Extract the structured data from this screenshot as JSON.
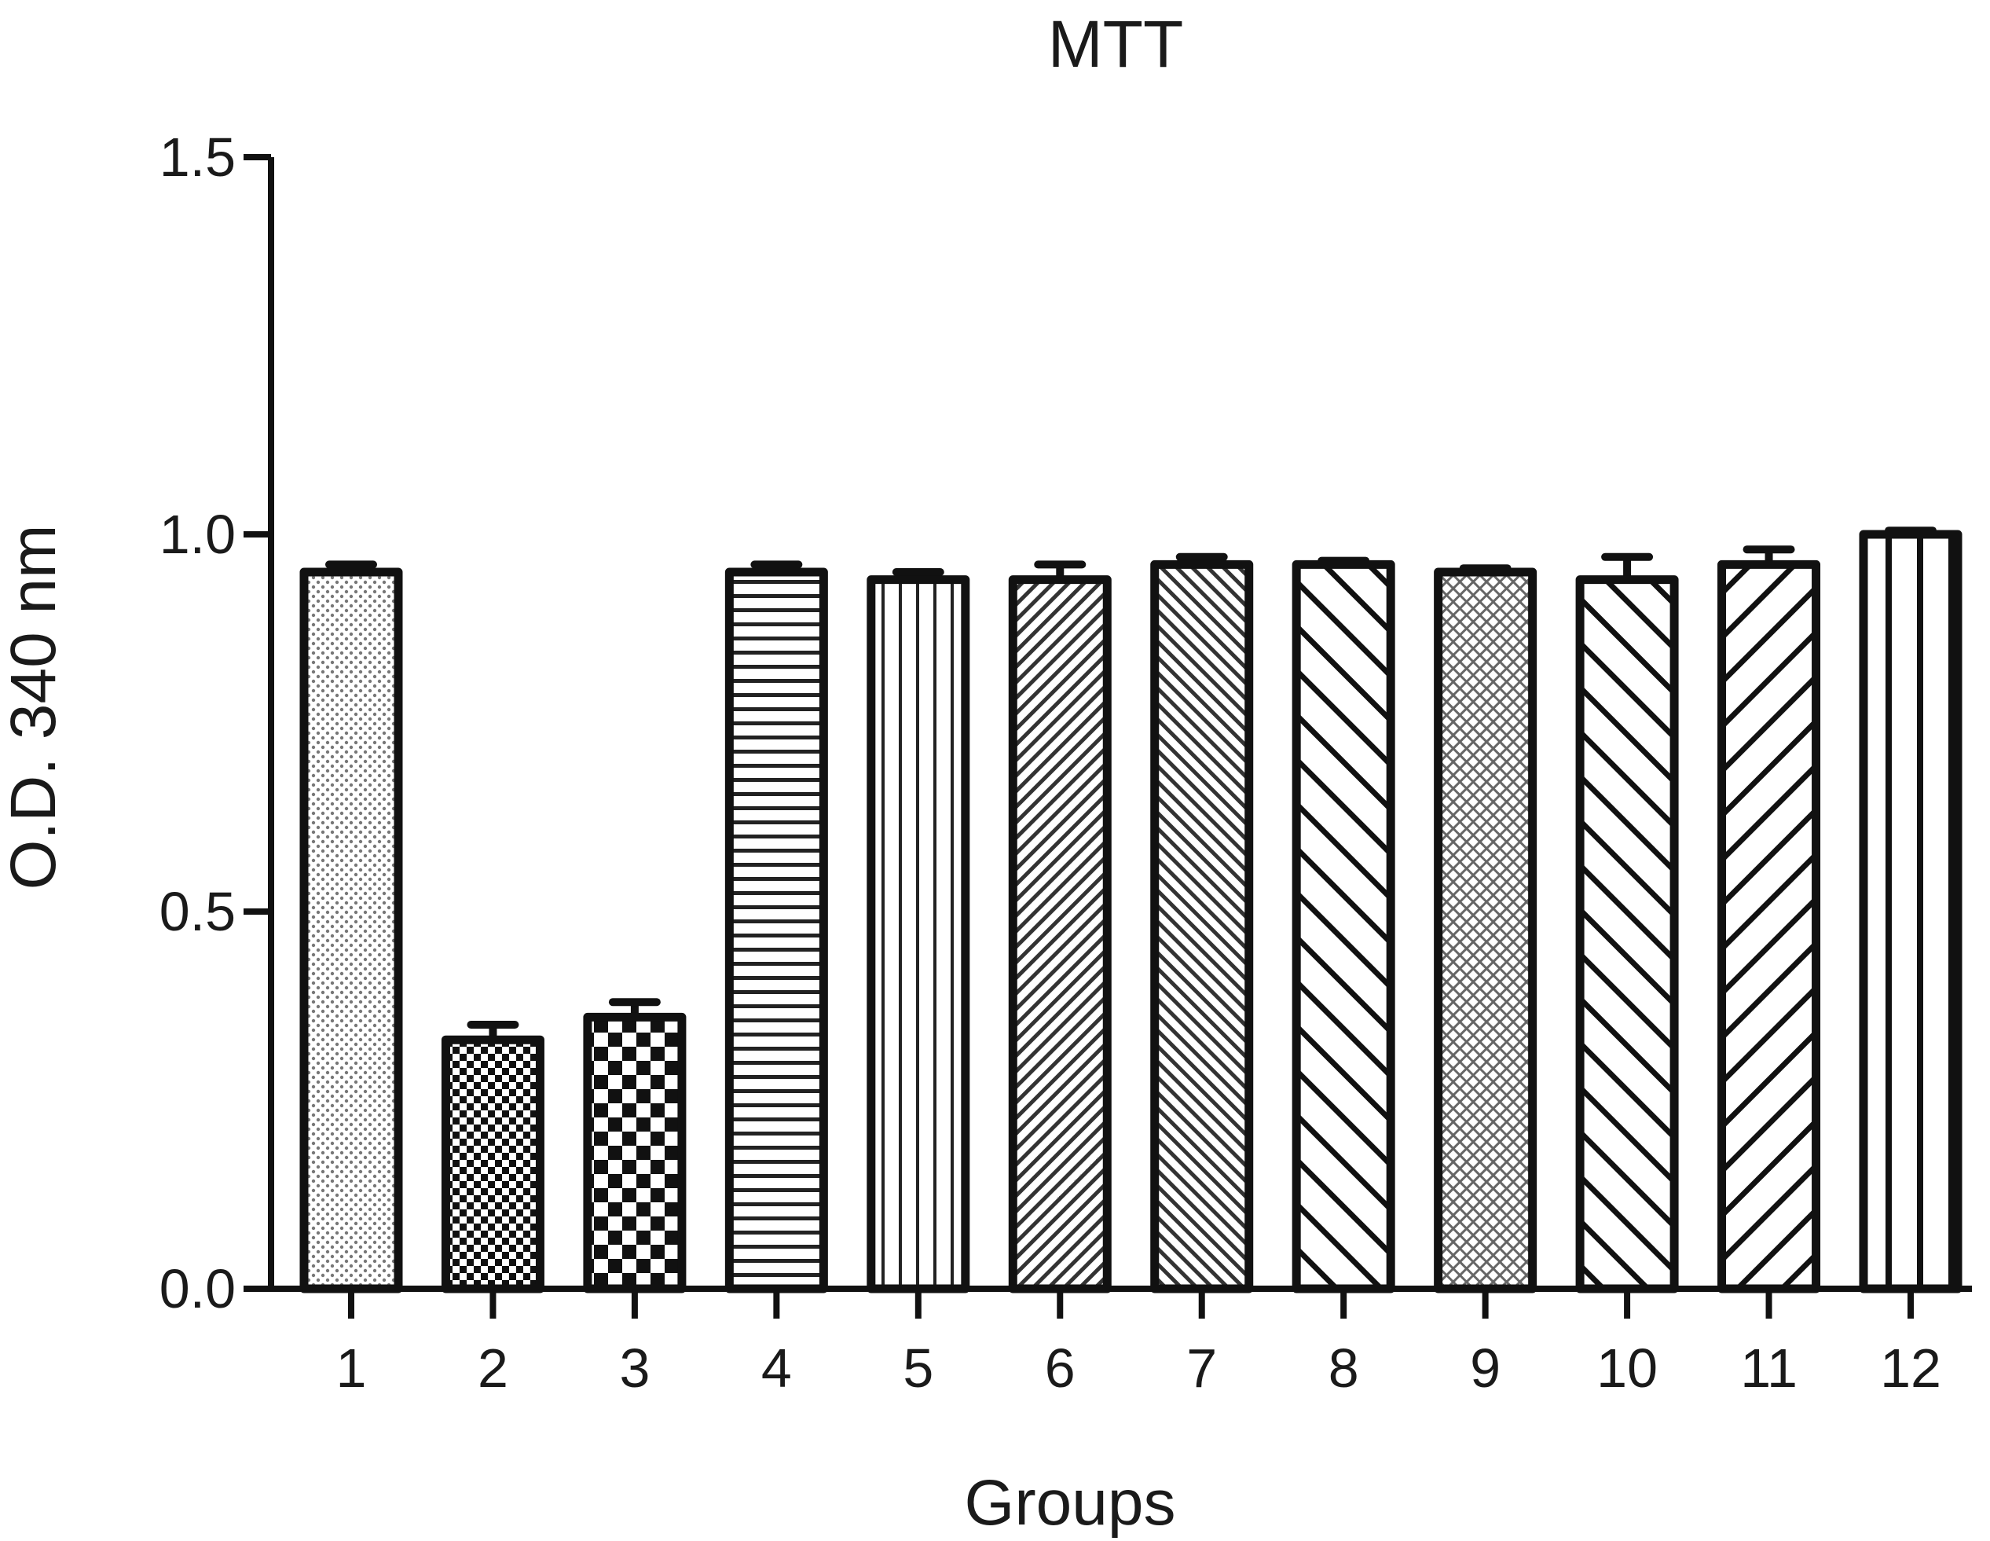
{
  "chart_data": {
    "type": "bar",
    "title": "MTT",
    "xlabel": "Groups",
    "ylabel": "O.D. 340 nm",
    "ylim": [
      0,
      1.5
    ],
    "yticks": [
      "0.0",
      "0.5",
      "1.0",
      "1.5"
    ],
    "ytick_values": [
      0,
      0.5,
      1.0,
      1.5
    ],
    "categories": [
      "1",
      "2",
      "3",
      "4",
      "5",
      "6",
      "7",
      "8",
      "9",
      "10",
      "11",
      "12"
    ],
    "values": [
      0.95,
      0.33,
      0.36,
      0.95,
      0.94,
      0.94,
      0.96,
      0.96,
      0.95,
      0.94,
      0.96,
      1.0
    ],
    "errors": [
      0.01,
      0.02,
      0.02,
      0.01,
      0.01,
      0.02,
      0.01,
      0.005,
      0.005,
      0.03,
      0.02,
      0.005
    ],
    "patterns": [
      "fine-dots",
      "checker-small",
      "checker-large",
      "horizontal-lines",
      "vertical-lines",
      "diagonal-fine-up",
      "diagonal-fine-down",
      "diagonal-wide-down",
      "crosshatch-fine",
      "diagonal-wide-down",
      "diagonal-wide-up",
      "vertical-wide"
    ],
    "grid": false,
    "legend": "none",
    "bar_color": "#ffffff",
    "edge_color": "#111111"
  }
}
